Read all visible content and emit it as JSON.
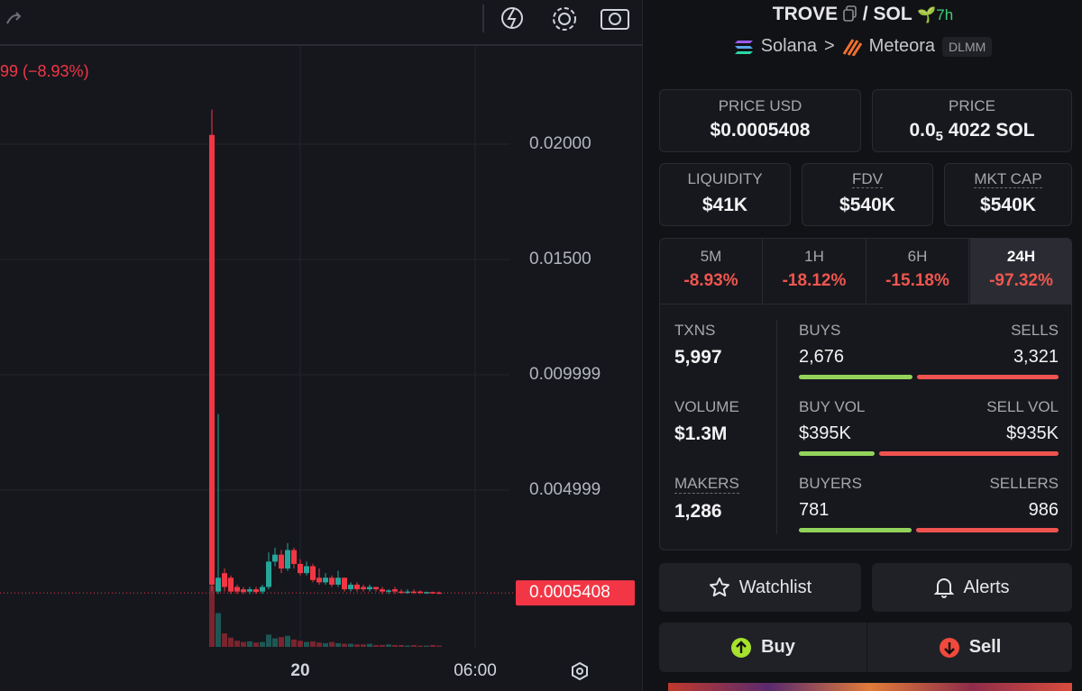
{
  "toolbar": {
    "change": "99 (−8.93%)"
  },
  "chart": {
    "ylim": [
      -0.001875,
      0.024297
    ],
    "yticks": [
      {
        "value": 0.02,
        "label": "0.02000"
      },
      {
        "value": 0.015,
        "label": "0.01500"
      },
      {
        "value": 0.009999,
        "label": "0.009999"
      },
      {
        "value": 0.004999,
        "label": "0.004999"
      }
    ],
    "xticks": [
      "20",
      "06:00"
    ],
    "last_price": 0.0005408,
    "up_color": "#26a69a",
    "down_color": "#f23645",
    "open": [
      0.0204,
      0.0006,
      0.0014,
      0.0012,
      0.0008,
      0.0007,
      0.0006,
      0.0007,
      0.0006,
      0.0008,
      0.0019,
      0.0022,
      0.0016,
      0.0024,
      0.0018,
      0.0014,
      0.0017,
      0.0012,
      0.001,
      0.0012,
      0.0009,
      0.0012,
      0.0007,
      0.0009,
      0.0008,
      0.0007,
      0.0008,
      0.0007,
      0.0006,
      0.0007,
      0.0006,
      0.00055,
      0.0006,
      0.0006,
      0.00054,
      0.00058,
      0.00056
    ],
    "high": [
      0.0215,
      0.0083,
      0.0016,
      0.0013,
      0.0009,
      0.0008,
      0.0008,
      0.0008,
      0.0009,
      0.0023,
      0.0025,
      0.0024,
      0.0027,
      0.0025,
      0.002,
      0.0019,
      0.0018,
      0.0016,
      0.0014,
      0.0013,
      0.0015,
      0.0012,
      0.001,
      0.001,
      0.0009,
      0.0009,
      0.0008,
      0.0008,
      0.0007,
      0.0008,
      0.0007,
      0.0007,
      0.0007,
      0.00065,
      0.0006,
      0.0006,
      0.0006
    ],
    "low": [
      0.0006,
      0.0005,
      0.0006,
      0.0005,
      0.0005,
      0.0005,
      0.0005,
      0.0005,
      0.0005,
      0.0007,
      0.0017,
      0.0014,
      0.0015,
      0.0016,
      0.0013,
      0.0013,
      0.001,
      0.0009,
      0.0009,
      0.0008,
      0.0008,
      0.0006,
      0.0006,
      0.0006,
      0.0006,
      0.0006,
      0.0006,
      0.0005,
      0.0005,
      0.0005,
      0.0005,
      0.0005,
      0.0005,
      0.0005,
      0.0005,
      0.0005,
      0.0005
    ],
    "close": [
      0.0009,
      0.0012,
      0.0008,
      0.0006,
      0.0006,
      0.00058,
      0.0007,
      0.00058,
      0.0008,
      0.0019,
      0.0022,
      0.0016,
      0.0024,
      0.0018,
      0.0014,
      0.0017,
      0.0011,
      0.001,
      0.0012,
      0.0009,
      0.0012,
      0.0007,
      0.0009,
      0.0007,
      0.0007,
      0.0008,
      0.0007,
      0.0006,
      0.00065,
      0.0006,
      0.00055,
      0.0006,
      0.00055,
      0.00054,
      0.00058,
      0.00054,
      0.000541
    ],
    "volume": [
      100,
      55,
      22,
      15,
      10,
      8,
      9,
      7,
      8,
      20,
      14,
      16,
      18,
      12,
      10,
      8,
      9,
      7,
      6,
      8,
      6,
      5,
      5,
      4,
      4,
      5,
      3,
      3,
      4,
      3,
      3,
      2,
      3,
      2,
      2,
      3,
      2
    ],
    "vlim": [
      0,
      100
    ]
  },
  "pair": {
    "base": "TROVE",
    "sep": "/",
    "quote": "SOL",
    "age": "7h",
    "chain": "Solana",
    "arrow": ">",
    "dex": "Meteora",
    "badge": "DLMM"
  },
  "prices": [
    {
      "label": "PRICE USD",
      "value": "$0.0005408"
    },
    {
      "label": "PRICE",
      "value_parts": [
        "0.0",
        "5",
        "4022 SOL"
      ]
    }
  ],
  "metrics": [
    {
      "label": "LIQUIDITY",
      "value": "$41K"
    },
    {
      "label": "FDV",
      "value": "$540K"
    },
    {
      "label": "MKT CAP",
      "value": "$540K"
    }
  ],
  "timeframes": [
    {
      "label": "5M",
      "change": "-8.93%"
    },
    {
      "label": "1H",
      "change": "-18.12%"
    },
    {
      "label": "6H",
      "change": "-15.18%"
    },
    {
      "label": "24H",
      "change": "-97.32%"
    }
  ],
  "stats": {
    "left": [
      {
        "label": "TXNS",
        "value": "5,997"
      },
      {
        "label": "VOLUME",
        "value": "$1.3M"
      },
      {
        "label": "MAKERS",
        "value": "1,286"
      }
    ],
    "rows": [
      {
        "left_label": "BUYS",
        "left_value": "2,676",
        "right_label": "SELLS",
        "right_value": "3,321"
      },
      {
        "left_label": "BUY VOL",
        "left_value": "$395K",
        "right_label": "SELL VOL",
        "right_value": "$935K"
      },
      {
        "left_label": "BUYERS",
        "left_value": "781",
        "right_label": "SELLERS",
        "right_value": "986"
      }
    ]
  },
  "buttons": {
    "watchlist": "Watchlist",
    "alerts": "Alerts",
    "buy": "Buy",
    "sell": "Sell"
  }
}
